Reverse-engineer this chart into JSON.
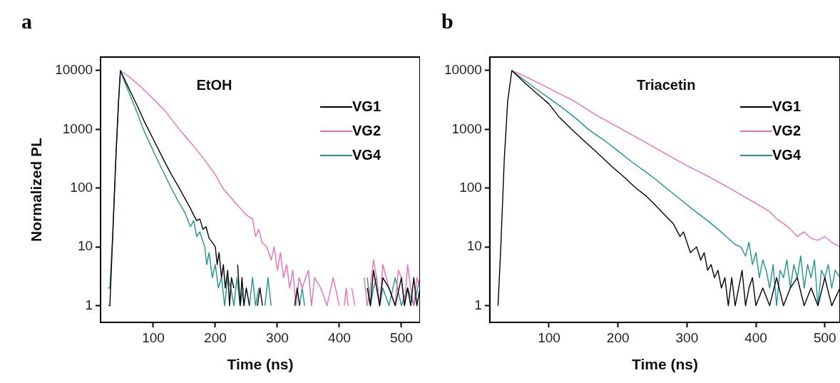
{
  "chart_data": [
    {
      "type": "line",
      "title": "a",
      "xlabel": "Time (ns)",
      "ylabel": "Normalized PL",
      "annotations": [
        "EtOH"
      ],
      "log": "y",
      "legend": "top right",
      "grid": false,
      "xlim": [
        15,
        530
      ],
      "xticks": [
        100,
        200,
        300,
        400,
        500
      ],
      "ylim": [
        0.52,
        17000
      ],
      "yticks": [
        1,
        10,
        100,
        1000,
        10000
      ],
      "series": [
        {
          "name": "VG1",
          "color": "#000000",
          "x": [
            28,
            30,
            35,
            40,
            44,
            47,
            55,
            65,
            75,
            85,
            92,
            100,
            110,
            120,
            130,
            142,
            150,
            160,
            165,
            170,
            175,
            180,
            185,
            190,
            195,
            200,
            203,
            206,
            210,
            213,
            216,
            220,
            223,
            226,
            230,
            233,
            236,
            240,
            243,
            246,
            250,
            255,
            260,
            268,
            272,
            276,
            280,
            328,
            332,
            336,
            340,
            445,
            450,
            455,
            460,
            465,
            470,
            480,
            490,
            500,
            505,
            510,
            515,
            520,
            525,
            530
          ],
          "values": [
            1,
            1,
            20,
            400,
            3000,
            10000,
            6600,
            4000,
            2400,
            1400,
            1000,
            680,
            420,
            260,
            165,
            100,
            70,
            45,
            35,
            28,
            30,
            20,
            22,
            14,
            12,
            10,
            5,
            8,
            3,
            5,
            2,
            4,
            1,
            3,
            2,
            null,
            5,
            1,
            3,
            1,
            2,
            1,
            null,
            1,
            2,
            1,
            null,
            1,
            2,
            1,
            null,
            2,
            1,
            4,
            2,
            1,
            3,
            2,
            1,
            3,
            1,
            2,
            1,
            3,
            1,
            2
          ]
        },
        {
          "name": "VG2",
          "color": "#f06eb4",
          "x": [
            47,
            60,
            80,
            100,
            120,
            142,
            160,
            180,
            200,
            212,
            230,
            250,
            260,
            265,
            270,
            275,
            283,
            290,
            295,
            300,
            305,
            310,
            315,
            320,
            325,
            330,
            335,
            340,
            350,
            355,
            360,
            370,
            380,
            390,
            400,
            405,
            408,
            411,
            414,
            417,
            420,
            425,
            430,
            440,
            445,
            450,
            455,
            460,
            465,
            470,
            480,
            490,
            495,
            500,
            505,
            510,
            515,
            520,
            525,
            530
          ],
          "values": [
            10000,
            8000,
            5300,
            3300,
            2000,
            1000,
            600,
            330,
            170,
            100,
            60,
            35,
            30,
            15,
            20,
            12,
            10,
            6,
            10,
            4,
            8,
            3,
            5,
            2,
            4,
            1,
            3,
            2,
            4,
            1,
            3,
            2,
            1,
            3,
            1,
            null,
            1,
            2,
            1,
            null,
            2,
            1,
            null,
            3,
            1,
            2,
            6,
            3,
            1,
            5,
            2,
            1,
            4,
            3,
            1,
            5,
            2,
            1,
            3,
            2
          ]
        },
        {
          "name": "VG4",
          "color": "#1a9690",
          "x": [
            27,
            30,
            35,
            40,
            44,
            47,
            55,
            65,
            75,
            84,
            95,
            105,
            115,
            129,
            140,
            150,
            160,
            165,
            170,
            175,
            183,
            186,
            190,
            195,
            200,
            205,
            210,
            215,
            220,
            225,
            230,
            235,
            240,
            245,
            250,
            255,
            260,
            265,
            270,
            275,
            280,
            285,
            290,
            295,
            336,
            340,
            344,
            348,
            445,
            450,
            455,
            460,
            465,
            470,
            480,
            490,
            500,
            510,
            520,
            530
          ],
          "values": [
            2,
            2,
            20,
            400,
            3000,
            10000,
            6000,
            3300,
            1800,
            1000,
            560,
            330,
            200,
            100,
            60,
            40,
            22,
            28,
            15,
            18,
            10,
            5,
            8,
            3,
            5,
            2,
            3,
            1,
            3,
            2,
            1,
            3,
            1,
            2,
            null,
            1,
            3,
            1,
            2,
            null,
            1,
            3,
            1,
            null,
            1,
            2,
            1,
            null,
            3,
            1,
            2,
            3,
            1,
            2,
            1,
            3,
            1,
            2,
            1,
            3
          ]
        }
      ]
    },
    {
      "type": "line",
      "title": "b",
      "xlabel": "Time (ns)",
      "annotations": [
        "Triacetin"
      ],
      "log": "y",
      "legend": "top right",
      "grid": false,
      "xlim": [
        14,
        522
      ],
      "xticks": [
        100,
        200,
        300,
        400,
        500
      ],
      "ylim": [
        0.52,
        17000
      ],
      "yticks": [
        1,
        10,
        100,
        1000,
        10000
      ],
      "series": [
        {
          "name": "VG1",
          "color": "#000000",
          "x": [
            26,
            30,
            35,
            40,
            46,
            60,
            80,
            100,
            115,
            133,
            150,
            170,
            190,
            210,
            226,
            240,
            255,
            270,
            280,
            290,
            295,
            300,
            305,
            314,
            320,
            325,
            330,
            335,
            340,
            345,
            350,
            355,
            360,
            365,
            370,
            375,
            380,
            385,
            390,
            395,
            400,
            410,
            420,
            430,
            440,
            450,
            460,
            470,
            480,
            490,
            500,
            510,
            522
          ],
          "values": [
            1,
            10,
            300,
            3000,
            10000,
            7000,
            4300,
            2700,
            1600,
            1000,
            650,
            400,
            240,
            150,
            100,
            75,
            50,
            33,
            25,
            15,
            18,
            12,
            8,
            10,
            6,
            8,
            4,
            5,
            3,
            4,
            2,
            3,
            1,
            3,
            1,
            2,
            4,
            1,
            2,
            3,
            1,
            2,
            1,
            3,
            1,
            2,
            3,
            1,
            2,
            1,
            3,
            1,
            2
          ]
        },
        {
          "name": "VG2",
          "color": "#f06eb4",
          "x": [
            46,
            70,
            100,
            137,
            170,
            206,
            240,
            270,
            300,
            330,
            362,
            380,
            400,
            420,
            430,
            440,
            450,
            460,
            470,
            480,
            490,
            500,
            510,
            522
          ],
          "values": [
            10000,
            7500,
            5000,
            3000,
            1700,
            1000,
            600,
            380,
            240,
            160,
            100,
            75,
            55,
            40,
            30,
            25,
            20,
            15,
            18,
            14,
            13,
            15,
            12,
            10
          ]
        },
        {
          "name": "VG4",
          "color": "#1a9690",
          "x": [
            46,
            60,
            80,
            100,
            120,
            140,
            157,
            180,
            200,
            220,
            240,
            255,
            270,
            290,
            310,
            330,
            345,
            360,
            370,
            378,
            385,
            390,
            395,
            400,
            405,
            410,
            415,
            420,
            425,
            430,
            435,
            440,
            445,
            450,
            455,
            460,
            465,
            470,
            475,
            480,
            485,
            490,
            495,
            500,
            505,
            510,
            515,
            522
          ],
          "values": [
            10000,
            7500,
            5000,
            3400,
            2300,
            1500,
            1000,
            650,
            430,
            280,
            190,
            140,
            100,
            65,
            42,
            28,
            20,
            14,
            11,
            10,
            7,
            12,
            5,
            8,
            3,
            6,
            4,
            2,
            5,
            1,
            4,
            3,
            6,
            2,
            5,
            3,
            7,
            2,
            5,
            3,
            6,
            1,
            4,
            3,
            5,
            2,
            4,
            3
          ]
        }
      ]
    }
  ]
}
